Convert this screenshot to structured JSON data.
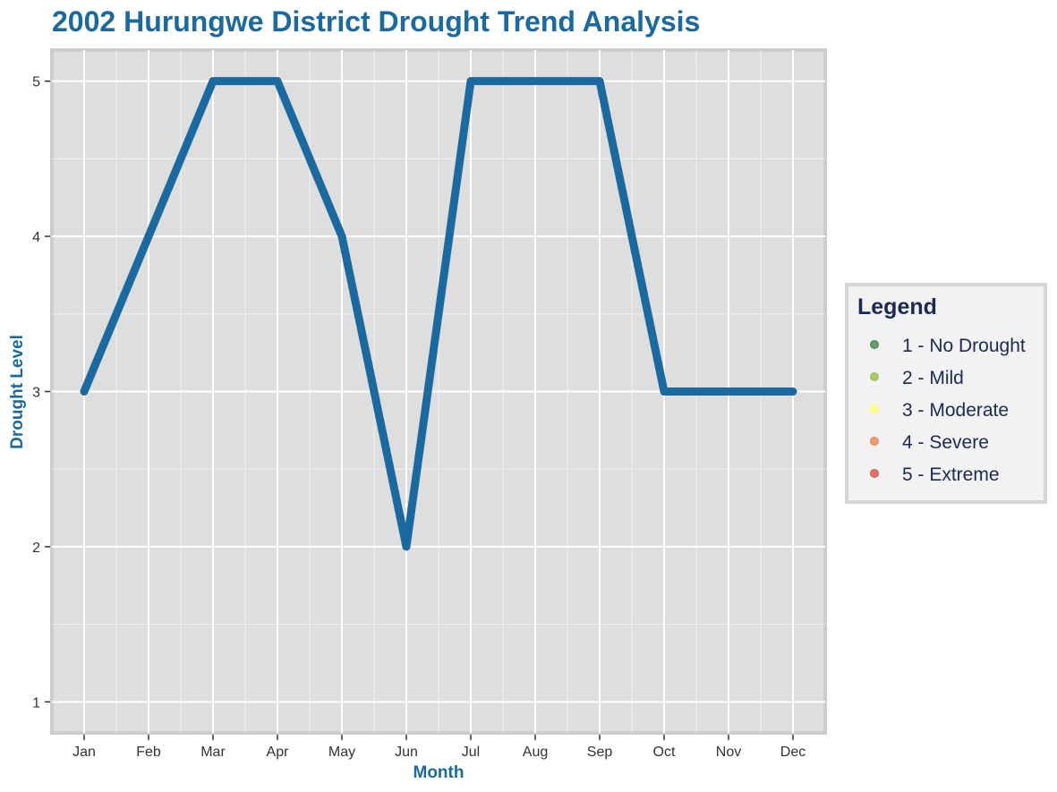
{
  "chart_data": {
    "type": "line",
    "title": "2002 Hurungwe District Drought Trend Analysis",
    "xlabel": "Month",
    "ylabel": "Drought Level",
    "categories": [
      "Jan",
      "Feb",
      "Mar",
      "Apr",
      "May",
      "Jun",
      "Jul",
      "Aug",
      "Sep",
      "Oct",
      "Nov",
      "Dec"
    ],
    "series": [
      {
        "values": [
          3,
          4,
          5,
          5,
          4,
          2,
          5,
          5,
          5,
          3,
          3,
          3
        ]
      }
    ],
    "ylim": [
      0.8,
      5.2
    ],
    "yticks": [
      "1",
      "2",
      "3",
      "4",
      "5"
    ],
    "grid": true,
    "legend": {
      "title": "Legend",
      "placement": "right",
      "items": [
        {
          "label": "1 - No Drought",
          "color": "#3a7d44"
        },
        {
          "label": "2 - Mild",
          "color": "#8fbc45"
        },
        {
          "label": "3 - Moderate",
          "color": "#ffff66"
        },
        {
          "label": "4 - Severe",
          "color": "#e67e4a"
        },
        {
          "label": "5 - Extreme",
          "color": "#d9453f"
        }
      ]
    }
  },
  "colors": {
    "accent": "#1a6aa0",
    "panel_bg": "#dedede",
    "grid": "#ffffff",
    "legend_text": "#1a2a55"
  }
}
